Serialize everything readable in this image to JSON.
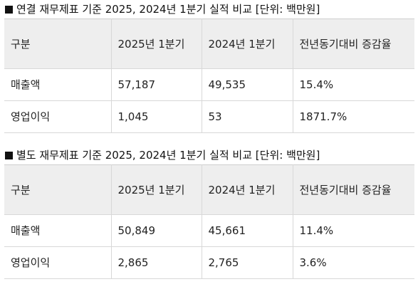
{
  "consolidated": {
    "title": "연결 재무제표 기준 2025, 2024년 1분기 실적 비교 [단위: 백만원]",
    "headers": [
      "구분",
      "2025년 1분기",
      "2024년 1분기",
      "전년동기대비 증감율"
    ],
    "rows": [
      [
        "매출액",
        "57,187",
        "49,535",
        "15.4%"
      ],
      [
        "영업이익",
        "1,045",
        "53",
        "1871.7%"
      ]
    ]
  },
  "separate": {
    "title": "별도 재무제표 기준 2025, 2024년 1분기 실적 비교 [단위: 백만원]",
    "headers": [
      "구분",
      "2025년 1분기",
      "2024년 1분기",
      "전년동기대비 증감율"
    ],
    "rows": [
      [
        "매출액",
        "50,849",
        "45,661",
        "11.4%"
      ],
      [
        "영업이익",
        "2,865",
        "2,765",
        "3.6%"
      ]
    ]
  }
}
